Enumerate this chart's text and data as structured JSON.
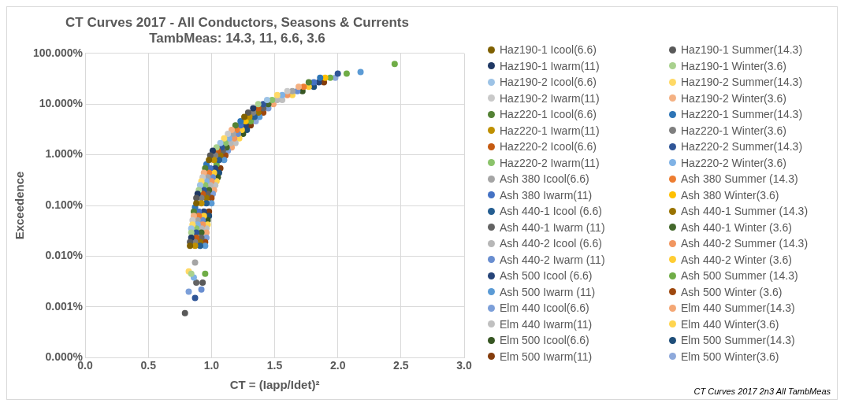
{
  "chart_data": {
    "type": "scatter",
    "title": "CT Curves 2017 - All Conductors, Seasons & Currents",
    "subtitle": "TambMeas: 14.3, 11, 6.6, 3.6",
    "xlabel": "CT = (Iapp/Idet)²",
    "ylabel": "Exceedence",
    "annotations": [
      "CT Curves 2017 2n3 All TambMeas"
    ],
    "log": "y",
    "grid": true,
    "legend": "right",
    "marker": "circle",
    "xlim": [
      0,
      3
    ],
    "xticks": [
      {
        "value": 0,
        "label": "0.0"
      },
      {
        "value": 0.5,
        "label": "0.5"
      },
      {
        "value": 1,
        "label": "1.0"
      },
      {
        "value": 1.5,
        "label": "1.5"
      },
      {
        "value": 2,
        "label": "2.0"
      },
      {
        "value": 2.5,
        "label": "2.5"
      },
      {
        "value": 3,
        "label": "3.0"
      }
    ],
    "ylim": [
      0.0001,
      100
    ],
    "yticks": [
      {
        "value": 0.0001,
        "label": "0.000%"
      },
      {
        "value": 0.001,
        "label": "0.001%"
      },
      {
        "value": 0.01,
        "label": "0.010%"
      },
      {
        "value": 0.1,
        "label": "0.100%"
      },
      {
        "value": 1,
        "label": "1.000%"
      },
      {
        "value": 10,
        "label": "10.000%"
      },
      {
        "value": 100,
        "label": "100.000%"
      }
    ],
    "series": [
      {
        "name": "Haz190-1 Icool(6.6)",
        "color": "#7f6000",
        "x": [
          0.83,
          0.88,
          0.98,
          1.26
        ],
        "values": [
          0.016,
          0.11,
          0.79,
          5.6
        ]
      },
      {
        "name": "Haz190-1 Summer(14.3)",
        "color": "#595959",
        "x": [
          0.83,
          0.88,
          0.99,
          1.29,
          0.79,
          0.93
        ],
        "values": [
          0.019,
          0.14,
          0.97,
          6.8,
          0.00075,
          0.003
        ]
      },
      {
        "name": "Haz190-1 Iwarm(11)",
        "color": "#1f3864",
        "x": [
          0.84,
          0.89,
          1.01,
          1.33
        ],
        "values": [
          0.023,
          0.17,
          1.2,
          8.3
        ]
      },
      {
        "name": "Haz190-1 Winter(3.6)",
        "color": "#a9d18e",
        "x": [
          0.84,
          0.9,
          1.04,
          1.37,
          0.84
        ],
        "values": [
          0.029,
          0.2,
          1.4,
          10,
          0.0045
        ]
      },
      {
        "name": "Haz190-2 Icool(6.6)",
        "color": "#9dc3e6",
        "x": [
          0.84,
          0.91,
          1.07,
          1.44
        ],
        "values": [
          0.035,
          0.25,
          1.7,
          12
        ]
      },
      {
        "name": "Haz190-2 Summer(14.3)",
        "color": "#ffd966",
        "x": [
          0.85,
          0.92,
          1.1,
          1.52,
          0.82
        ],
        "values": [
          0.042,
          0.3,
          2.1,
          15,
          0.005
        ]
      },
      {
        "name": "Haz190-2 Iwarm(11)",
        "color": "#c9c9c9",
        "x": [
          0.85,
          0.93,
          1.13,
          1.6
        ],
        "values": [
          0.051,
          0.36,
          2.6,
          18
        ]
      },
      {
        "name": "Haz190-2 Winter(3.6)",
        "color": "#f4b183",
        "x": [
          0.86,
          0.94,
          1.16,
          1.69
        ],
        "values": [
          0.062,
          0.44,
          3.1,
          22
        ]
      },
      {
        "name": "Haz220-1 Icool(6.6)",
        "color": "#548235",
        "x": [
          0.86,
          0.95,
          1.19,
          1.77
        ],
        "values": [
          0.076,
          0.54,
          3.8,
          27
        ]
      },
      {
        "name": "Haz220-1 Summer(14.3)",
        "color": "#2e75b6",
        "x": [
          0.87,
          0.96,
          1.23,
          1.86
        ],
        "values": [
          0.092,
          0.65,
          4.6,
          33
        ]
      },
      {
        "name": "Haz220-1 Iwarm(11)",
        "color": "#bf9000",
        "x": [
          0.87,
          0.92,
          1.02,
          1.3
        ],
        "values": [
          0.016,
          0.11,
          0.79,
          5.6
        ]
      },
      {
        "name": "Haz220-1 Winter(3.6)",
        "color": "#7f7f7f",
        "x": [
          0.87,
          0.92,
          1.03,
          1.33
        ],
        "values": [
          0.019,
          0.14,
          0.97,
          6.8
        ]
      },
      {
        "name": "Haz220-2 Icool(6.6)",
        "color": "#c55a11",
        "x": [
          0.88,
          0.93,
          1.05,
          1.37
        ],
        "values": [
          0.023,
          0.17,
          1.2,
          8.3
        ]
      },
      {
        "name": "Haz220-2 Summer(14.3)",
        "color": "#2f5597",
        "x": [
          0.88,
          0.94,
          1.08,
          1.41,
          0.87,
          2.0
        ],
        "values": [
          0.029,
          0.2,
          1.4,
          10,
          0.0015,
          40
        ]
      },
      {
        "name": "Haz220-2 Iwarm(11)",
        "color": "#8bc36b",
        "x": [
          0.88,
          0.95,
          1.11,
          1.48
        ],
        "values": [
          0.035,
          0.25,
          1.7,
          12
        ]
      },
      {
        "name": "Haz220-2 Winter(3.6)",
        "color": "#7fb2e5",
        "x": [
          0.89,
          0.96,
          1.14,
          1.56,
          0.86
        ],
        "values": [
          0.042,
          0.3,
          2.1,
          15,
          0.0038
        ]
      },
      {
        "name": "Ash 380 Icool(6.6)",
        "color": "#a5a5a5",
        "x": [
          0.89,
          0.97,
          1.17,
          1.64,
          0.87
        ],
        "values": [
          0.051,
          0.36,
          2.6,
          18,
          0.0075
        ]
      },
      {
        "name": "Ash 380 Summer (14.3)",
        "color": "#ed7d31",
        "x": [
          0.9,
          0.98,
          1.2,
          1.73
        ],
        "values": [
          0.062,
          0.44,
          3.1,
          22
        ]
      },
      {
        "name": "Ash 380 Iwarm(11)",
        "color": "#4472c4",
        "x": [
          0.9,
          0.99,
          1.23,
          1.81
        ],
        "values": [
          0.076,
          0.54,
          3.8,
          27
        ]
      },
      {
        "name": "Ash 380 Winter(3.6)",
        "color": "#ffc000",
        "x": [
          1.27,
          1.9
        ],
        "values": [
          4.6,
          33
        ]
      },
      {
        "name": "Ash 440-1 Icool (6.6)",
        "color": "#255e91",
        "x": [
          0.91,
          0.96,
          1.06,
          1.34
        ],
        "values": [
          0.016,
          0.11,
          0.79,
          5.6
        ]
      },
      {
        "name": "Ash 440-1 Summer (14.3)",
        "color": "#997300",
        "x": [
          0.91,
          0.96,
          1.07,
          1.37
        ],
        "values": [
          0.019,
          0.14,
          0.97,
          6.8
        ]
      },
      {
        "name": "Ash 440-1 Iwarm (11)",
        "color": "#636363",
        "x": [
          0.92,
          0.97,
          1.09,
          1.41,
          0.88
        ],
        "values": [
          0.023,
          0.17,
          1.2,
          8.3,
          0.003
        ]
      },
      {
        "name": "Ash 440-1 Winter (3.6)",
        "color": "#43682b",
        "x": [
          0.92,
          0.98,
          1.12,
          1.45
        ],
        "values": [
          0.029,
          0.2,
          1.4,
          10
        ]
      },
      {
        "name": "Ash 440-2 Icool (6.6)",
        "color": "#b7b7b7",
        "x": [
          0.92,
          0.99,
          1.15,
          1.52
        ],
        "values": [
          0.035,
          0.25,
          1.7,
          12
        ]
      },
      {
        "name": "Ash 440-2 Summer (14.3)",
        "color": "#f19660",
        "x": [
          0.93,
          1.0,
          1.18,
          1.6
        ],
        "values": [
          0.042,
          0.3,
          2.1,
          15
        ]
      },
      {
        "name": "Ash 440-2 Iwarm (11)",
        "color": "#698ed0",
        "x": [
          0.93,
          1.01,
          1.21,
          1.68,
          0.92
        ],
        "values": [
          0.051,
          0.36,
          2.6,
          18,
          0.0022
        ]
      },
      {
        "name": "Ash 440-2 Winter (3.6)",
        "color": "#ffcd33",
        "x": [
          0.94,
          1.02,
          1.24,
          1.77
        ],
        "values": [
          0.062,
          0.44,
          3.1,
          22
        ]
      },
      {
        "name": "Ash 500 Icool (6.6)",
        "color": "#264478",
        "x": [
          0.94,
          1.03,
          1.27,
          1.85
        ],
        "values": [
          0.076,
          0.54,
          3.8,
          27
        ]
      },
      {
        "name": "Ash 500 Summer (14.3)",
        "color": "#70ad47",
        "x": [
          1.04,
          1.31,
          1.94,
          2.45,
          2.07,
          0.95
        ],
        "values": [
          0.65,
          4.6,
          33,
          62,
          40,
          0.0045
        ]
      },
      {
        "name": "Ash 500 Iwarm (11)",
        "color": "#5b9bd5",
        "x": [
          0.95,
          1.0,
          1.1,
          1.38,
          2.18
        ],
        "values": [
          0.016,
          0.11,
          0.79,
          5.6,
          43
        ]
      },
      {
        "name": "Ash 500 Winter (3.6)",
        "color": "#9e480e",
        "x": [
          0.95,
          1.0,
          1.11,
          1.41
        ],
        "values": [
          0.019,
          0.14,
          0.97,
          6.8
        ]
      },
      {
        "name": "Elm 440 Icool(6.6)",
        "color": "#7c9fd9",
        "x": [
          0.96,
          1.01,
          1.13,
          1.45,
          0.82
        ],
        "values": [
          0.023,
          0.17,
          1.2,
          8.3,
          0.002
        ]
      },
      {
        "name": "Elm 440 Summer(14.3)",
        "color": "#f4a775",
        "x": [
          0.96,
          1.02,
          1.16,
          1.49
        ],
        "values": [
          0.029,
          0.2,
          1.4,
          10
        ]
      },
      {
        "name": "Elm 440 Iwarm(11)",
        "color": "#c0c0c0",
        "x": [
          0.96,
          1.03,
          1.19,
          1.56
        ],
        "values": [
          0.035,
          0.25,
          1.7,
          12
        ]
      },
      {
        "name": "Elm 440 Winter(3.6)",
        "color": "#ffd54f",
        "x": [
          0.97,
          1.04,
          1.22,
          1.64
        ],
        "values": [
          0.042,
          0.3,
          2.1,
          15
        ]
      },
      {
        "name": "Elm 500 Icool(6.6)",
        "color": "#375623",
        "x": [
          0.97,
          1.05,
          1.25,
          1.72
        ],
        "values": [
          0.051,
          0.36,
          2.6,
          18
        ]
      },
      {
        "name": "Elm 500 Summer(14.3)",
        "color": "#1f4e79",
        "x": [
          0.98,
          1.06,
          1.28,
          1.81
        ],
        "values": [
          0.062,
          0.44,
          3.1,
          22
        ]
      },
      {
        "name": "Elm 500 Iwarm(11)",
        "color": "#843c0c",
        "x": [
          0.98,
          1.07,
          1.31,
          1.89
        ],
        "values": [
          0.076,
          0.54,
          3.8,
          27
        ]
      },
      {
        "name": "Elm 500 Winter(3.6)",
        "color": "#8ea9db",
        "x": [
          1.35,
          1.98
        ],
        "values": [
          4.6,
          33
        ]
      }
    ]
  }
}
